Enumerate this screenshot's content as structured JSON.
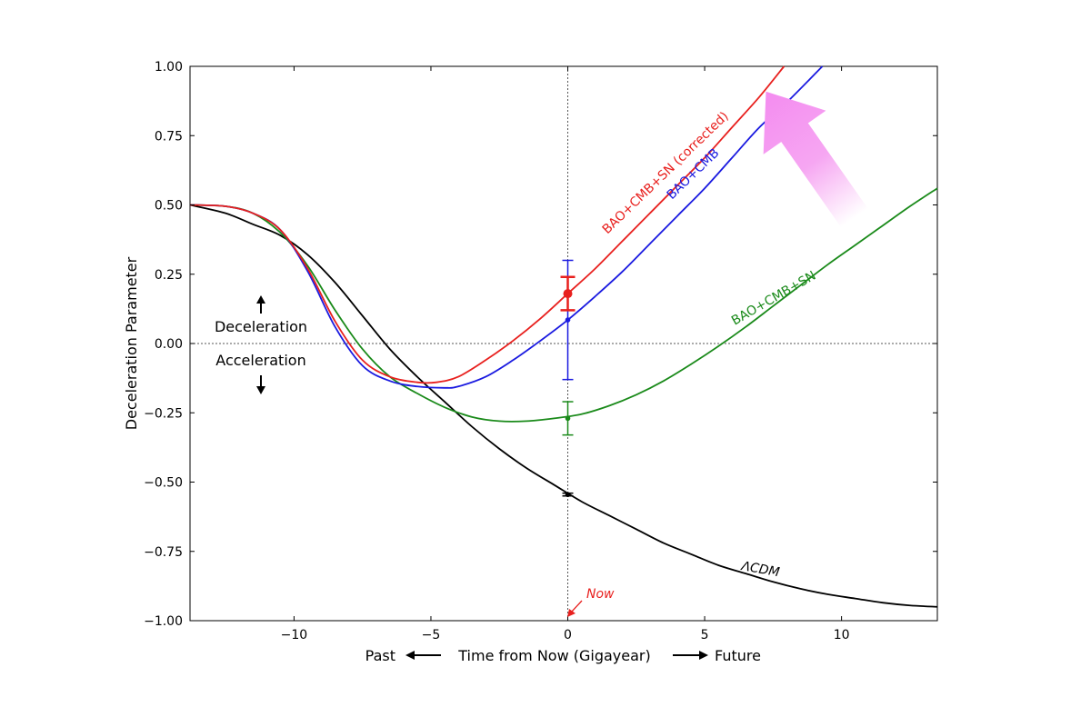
{
  "chart_data": {
    "type": "line",
    "xlabel_left": "Past",
    "xlabel": "Time from Now (Gigayear)",
    "xlabel_right": "Future",
    "ylabel": "Deceleration Parameter",
    "xlim": [
      -13.8,
      13.5
    ],
    "ylim": [
      -1.0,
      1.0
    ],
    "xticks": [
      -10,
      -5,
      0,
      5,
      10
    ],
    "xtick_labels": [
      "−10",
      "−5",
      "0",
      "5",
      "10"
    ],
    "yticks": [
      1.0,
      0.75,
      0.5,
      0.25,
      0.0,
      -0.25,
      -0.5,
      -0.75,
      -1.0
    ],
    "ytick_labels": [
      "1.00",
      "0.75",
      "0.50",
      "0.25",
      "0.00",
      "−0.25",
      "−0.50",
      "−0.75",
      "−1.00"
    ],
    "grid": false,
    "reference_lines": {
      "x": 0,
      "y": 0
    },
    "annotations": {
      "deceleration": "Deceleration",
      "acceleration": "Acceleration",
      "now": "Now"
    },
    "series": [
      {
        "name": "BAO+CMB+SN (corrected)",
        "color": "#e8201e",
        "x": [
          -13.8,
          -12.5,
          -11.5,
          -10.5,
          -9.5,
          -8.5,
          -7.5,
          -6.5,
          -5.5,
          -4.8,
          -4.0,
          -3.0,
          -2.0,
          -1.0,
          0.0,
          1.0,
          2.0,
          3.0,
          4.0,
          5.0,
          6.0,
          7.0,
          7.9
        ],
        "y": [
          0.5,
          0.495,
          0.47,
          0.41,
          0.27,
          0.08,
          -0.06,
          -0.12,
          -0.14,
          -0.14,
          -0.12,
          -0.06,
          0.01,
          0.09,
          0.18,
          0.27,
          0.37,
          0.47,
          0.57,
          0.67,
          0.78,
          0.89,
          1.0
        ],
        "errorbar": {
          "x": 0,
          "y": 0.18,
          "low": 0.12,
          "high": 0.24
        }
      },
      {
        "name": "BAO+CMB",
        "color": "#1a1ae0",
        "x": [
          -13.8,
          -12.5,
          -11.5,
          -10.5,
          -9.5,
          -8.5,
          -7.5,
          -6.5,
          -5.5,
          -4.5,
          -4.0,
          -3.0,
          -2.0,
          -1.0,
          0.0,
          1.0,
          2.0,
          3.0,
          4.0,
          5.0,
          6.0,
          7.0,
          8.0,
          9.3
        ],
        "y": [
          0.5,
          0.495,
          0.47,
          0.41,
          0.26,
          0.06,
          -0.08,
          -0.135,
          -0.155,
          -0.16,
          -0.155,
          -0.12,
          -0.06,
          0.01,
          0.085,
          0.17,
          0.26,
          0.36,
          0.46,
          0.56,
          0.67,
          0.78,
          0.87,
          1.0
        ],
        "errorbar": {
          "x": 0,
          "y": 0.085,
          "low": -0.13,
          "high": 0.3
        }
      },
      {
        "name": "BAO+CMB+SN",
        "color": "#1a8a1a",
        "x": [
          -13.8,
          -12.5,
          -11.5,
          -10.5,
          -9.5,
          -8.5,
          -7.5,
          -6.5,
          -5.5,
          -4.5,
          -3.5,
          -2.5,
          -1.5,
          -0.5,
          0.5,
          1.5,
          2.5,
          3.5,
          4.5,
          5.5,
          6.5,
          7.5,
          8.5,
          9.5,
          10.5,
          11.5,
          12.5,
          13.5
        ],
        "y": [
          0.5,
          0.495,
          0.47,
          0.4,
          0.28,
          0.12,
          -0.02,
          -0.12,
          -0.18,
          -0.23,
          -0.265,
          -0.28,
          -0.28,
          -0.27,
          -0.255,
          -0.225,
          -0.185,
          -0.135,
          -0.075,
          -0.01,
          0.06,
          0.135,
          0.21,
          0.285,
          0.355,
          0.425,
          0.495,
          0.56
        ],
        "errorbar": {
          "x": 0,
          "y": -0.27,
          "low": -0.33,
          "high": -0.21
        }
      },
      {
        "name": "ΛCDM",
        "color": "#000000",
        "x": [
          -13.8,
          -12.5,
          -11.5,
          -10.5,
          -9.5,
          -8.5,
          -7.5,
          -6.5,
          -5.5,
          -4.5,
          -3.5,
          -2.5,
          -1.5,
          -0.5,
          0.5,
          1.5,
          2.5,
          3.5,
          4.5,
          5.5,
          6.5,
          7.5,
          8.5,
          9.5,
          10.5,
          11.5,
          12.5,
          13.5
        ],
        "y": [
          0.5,
          0.47,
          0.43,
          0.39,
          0.32,
          0.22,
          0.1,
          -0.02,
          -0.12,
          -0.21,
          -0.3,
          -0.38,
          -0.45,
          -0.51,
          -0.57,
          -0.62,
          -0.67,
          -0.72,
          -0.76,
          -0.8,
          -0.83,
          -0.86,
          -0.885,
          -0.905,
          -0.92,
          -0.935,
          -0.945,
          -0.95
        ],
        "errorbar": {
          "x": 0,
          "y": -0.545,
          "low": -0.55,
          "high": -0.54
        }
      }
    ]
  },
  "colors": {
    "frame": "#000000",
    "reference_line": "#555555",
    "now_arrow": "#e8201e",
    "pink_arrow": "#f48cf0"
  }
}
